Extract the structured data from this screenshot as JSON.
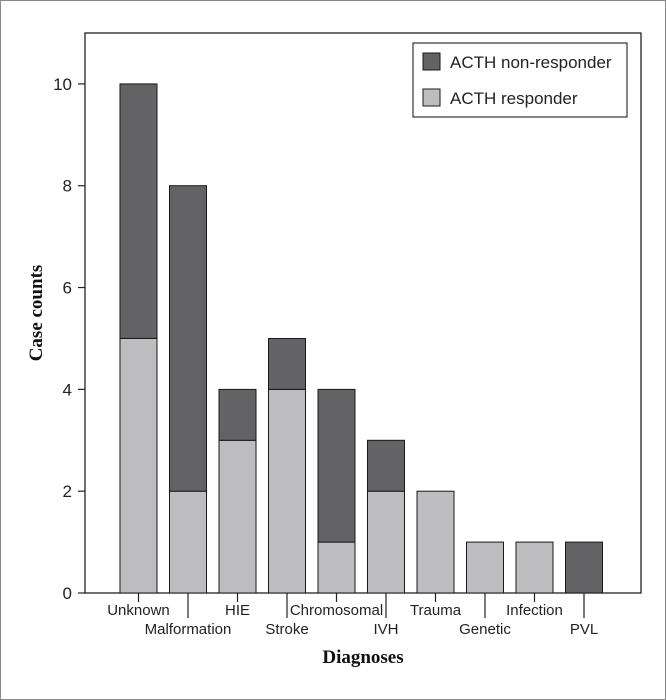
{
  "chart_data": {
    "type": "bar",
    "stacked": true,
    "categories": [
      "Unknown",
      "Malformation",
      "HIE",
      "Stroke",
      "Chromosomal",
      "IVH",
      "Trauma",
      "Genetic",
      "Infection",
      "PVL"
    ],
    "series": [
      {
        "name": "ACTH responder",
        "color": "#bdbdbf",
        "values": [
          5,
          2,
          3,
          4,
          1,
          2,
          2,
          1,
          1,
          0
        ]
      },
      {
        "name": "ACTH non-responder",
        "color": "#636366",
        "values": [
          5,
          6,
          1,
          1,
          3,
          1,
          0,
          0,
          0,
          1
        ]
      }
    ],
    "title": "",
    "xlabel": "Diagnoses",
    "ylabel": "Case counts",
    "ylim": [
      0,
      11
    ],
    "yticks": [
      0,
      2,
      4,
      6,
      8,
      10
    ],
    "legend_position": "top-right",
    "legend_order": [
      "ACTH non-responder",
      "ACTH responder"
    ],
    "grid": false
  }
}
